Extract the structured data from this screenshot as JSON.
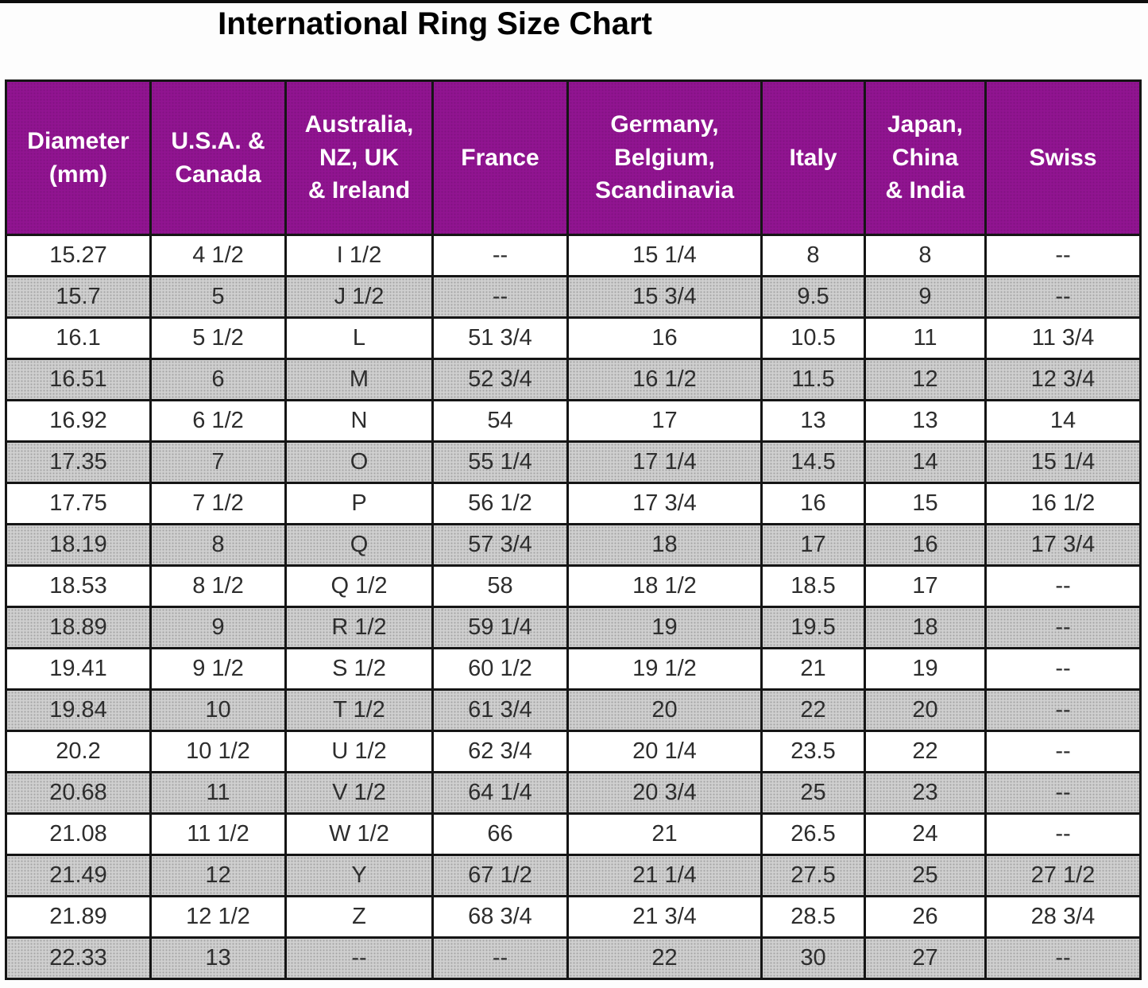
{
  "page": {
    "title": "International Ring Size Chart"
  },
  "colors": {
    "header_bg": "#911491",
    "header_text": "#ffffff",
    "row_alt_bg": "#d0d0d0",
    "border": "#151515",
    "title_text": "#000000"
  },
  "chart_data": {
    "type": "table",
    "title": "International Ring Size Chart",
    "grid": true,
    "columns": [
      "Diameter\n(mm)",
      "U.S.A. &\nCanada",
      "Australia,\nNZ, UK\n& Ireland",
      "France",
      "Germany,\nBelgium,\nScandinavia",
      "Italy",
      "Japan,\nChina\n& India",
      "Swiss"
    ],
    "rows": [
      [
        "15.27",
        "4 1/2",
        "I 1/2",
        "--",
        "15 1/4",
        "8",
        "8",
        "--"
      ],
      [
        "15.7",
        "5",
        "J 1/2",
        "--",
        "15 3/4",
        "9.5",
        "9",
        "--"
      ],
      [
        "16.1",
        "5 1/2",
        "L",
        "51 3/4",
        "16",
        "10.5",
        "11",
        "11 3/4"
      ],
      [
        "16.51",
        "6",
        "M",
        "52 3/4",
        "16 1/2",
        "11.5",
        "12",
        "12 3/4"
      ],
      [
        "16.92",
        "6 1/2",
        "N",
        "54",
        "17",
        "13",
        "13",
        "14"
      ],
      [
        "17.35",
        "7",
        "O",
        "55 1/4",
        "17 1/4",
        "14.5",
        "14",
        "15 1/4"
      ],
      [
        "17.75",
        "7 1/2",
        "P",
        "56 1/2",
        "17 3/4",
        "16",
        "15",
        "16 1/2"
      ],
      [
        "18.19",
        "8",
        "Q",
        "57 3/4",
        "18",
        "17",
        "16",
        "17 3/4"
      ],
      [
        "18.53",
        "8 1/2",
        "Q 1/2",
        "58",
        "18 1/2",
        "18.5",
        "17",
        "--"
      ],
      [
        "18.89",
        "9",
        "R 1/2",
        "59 1/4",
        "19",
        "19.5",
        "18",
        "--"
      ],
      [
        "19.41",
        "9 1/2",
        "S 1/2",
        "60 1/2",
        "19 1/2",
        "21",
        "19",
        "--"
      ],
      [
        "19.84",
        "10",
        "T 1/2",
        "61 3/4",
        "20",
        "22",
        "20",
        "--"
      ],
      [
        "20.2",
        "10 1/2",
        "U 1/2",
        "62 3/4",
        "20 1/4",
        "23.5",
        "22",
        "--"
      ],
      [
        "20.68",
        "11",
        "V 1/2",
        "64 1/4",
        "20 3/4",
        "25",
        "23",
        "--"
      ],
      [
        "21.08",
        "11 1/2",
        "W 1/2",
        "66",
        "21",
        "26.5",
        "24",
        "--"
      ],
      [
        "21.49",
        "12",
        "Y",
        "67 1/2",
        "21 1/4",
        "27.5",
        "25",
        "27 1/2"
      ],
      [
        "21.89",
        "12 1/2",
        "Z",
        "68 3/4",
        "21 3/4",
        "28.5",
        "26",
        "28 3/4"
      ],
      [
        "22.33",
        "13",
        "--",
        "--",
        "22",
        "30",
        "27",
        "--"
      ]
    ]
  }
}
